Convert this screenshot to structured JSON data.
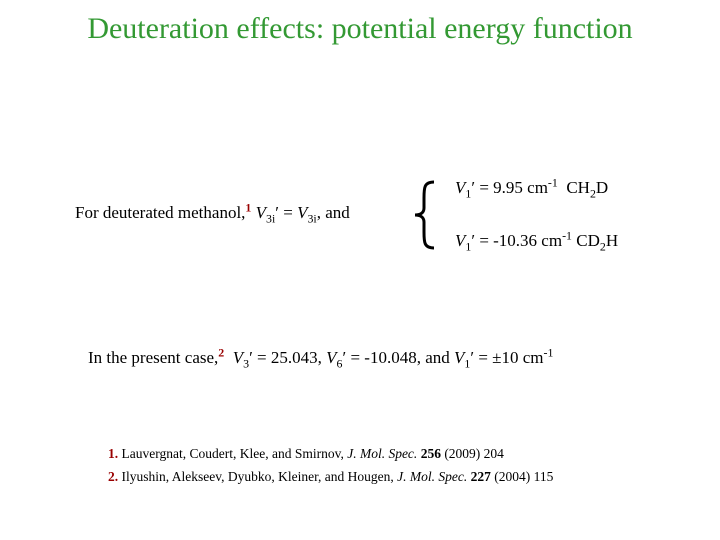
{
  "title": "Deuteration effects: potential energy function",
  "line1": [
    "For deuterated methanol,",
    "1",
    " V",
    "3i",
    "′ = ",
    "V",
    "3i",
    ", and"
  ],
  "brace_rows": [
    [
      "V",
      "1",
      "′ = 9.95 cm",
      "-1",
      "  CH",
      "2",
      "D"
    ],
    [
      "V",
      "1",
      "′ = -10.36 cm",
      "-1",
      " CD",
      "2",
      "H"
    ]
  ],
  "line2": [
    "In the present case,",
    "2",
    "  V",
    "3",
    "′ = 25.043, ",
    "V",
    "6",
    "′ = -10.048, and ",
    "V",
    "1",
    "′ = ±10 cm",
    "-1"
  ],
  "references": [
    [
      "1.",
      " Lauvergnat, Coudert, Klee, and Smirnov, ",
      "J. Mol. Spec.",
      " ",
      "256",
      " (2009) 204"
    ],
    [
      "2.",
      " Ilyushin, Alekseev, Dyubko, Kleiner, and Hougen, ",
      "J. Mol. Spec.",
      " ",
      "227",
      " (2004) 115"
    ]
  ]
}
